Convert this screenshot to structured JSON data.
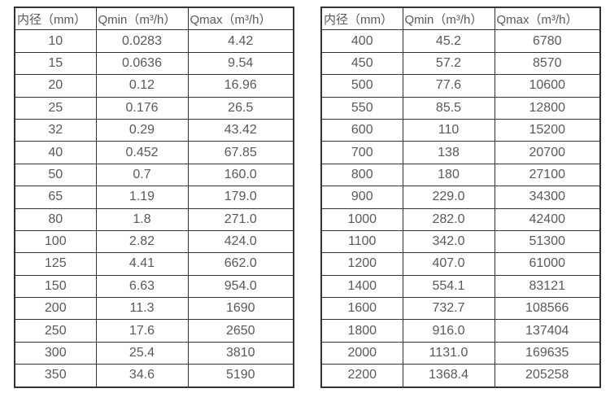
{
  "colors": {
    "border": "#333333",
    "text": "#595959",
    "background": "#ffffff"
  },
  "chart_data": [
    {
      "type": "table",
      "columns": [
        "内径（mm）",
        "Qmin（m³/h）",
        "Qmax（m³/h）"
      ],
      "rows": [
        [
          "10",
          "0.0283",
          "4.42"
        ],
        [
          "15",
          "0.0636",
          "9.54"
        ],
        [
          "20",
          "0.12",
          "16.96"
        ],
        [
          "25",
          "0.176",
          "26.5"
        ],
        [
          "32",
          "0.29",
          "43.42"
        ],
        [
          "40",
          "0.452",
          "67.85"
        ],
        [
          "50",
          "0.7",
          "160.0"
        ],
        [
          "65",
          "1.19",
          "179.0"
        ],
        [
          "80",
          "1.8",
          "271.0"
        ],
        [
          "100",
          "2.82",
          "424.0"
        ],
        [
          "125",
          "4.41",
          "662.0"
        ],
        [
          "150",
          "6.63",
          "954.0"
        ],
        [
          "200",
          "11.3",
          "1690"
        ],
        [
          "250",
          "17.6",
          "2650"
        ],
        [
          "300",
          "25.4",
          "3810"
        ],
        [
          "350",
          "34.6",
          "5190"
        ]
      ]
    },
    {
      "type": "table",
      "columns": [
        "内径（mm）",
        "Qmin（m³/h）",
        "Qmax（m³/h）"
      ],
      "rows": [
        [
          "400",
          "45.2",
          "6780"
        ],
        [
          "450",
          "57.2",
          "8570"
        ],
        [
          "500",
          "77.6",
          "10600"
        ],
        [
          "550",
          "85.5",
          "12800"
        ],
        [
          "600",
          "110",
          "15200"
        ],
        [
          "700",
          "138",
          "20700"
        ],
        [
          "800",
          "180",
          "27100"
        ],
        [
          "900",
          "229.0",
          "34300"
        ],
        [
          "1000",
          "282.0",
          "42400"
        ],
        [
          "1100",
          "342.0",
          "51300"
        ],
        [
          "1200",
          "407.0",
          "61000"
        ],
        [
          "1400",
          "554.1",
          "83121"
        ],
        [
          "1600",
          "732.7",
          "108566"
        ],
        [
          "1800",
          "916.0",
          "137404"
        ],
        [
          "2000",
          "1131.0",
          "169635"
        ],
        [
          "2200",
          "1368.4",
          "205258"
        ]
      ]
    }
  ]
}
